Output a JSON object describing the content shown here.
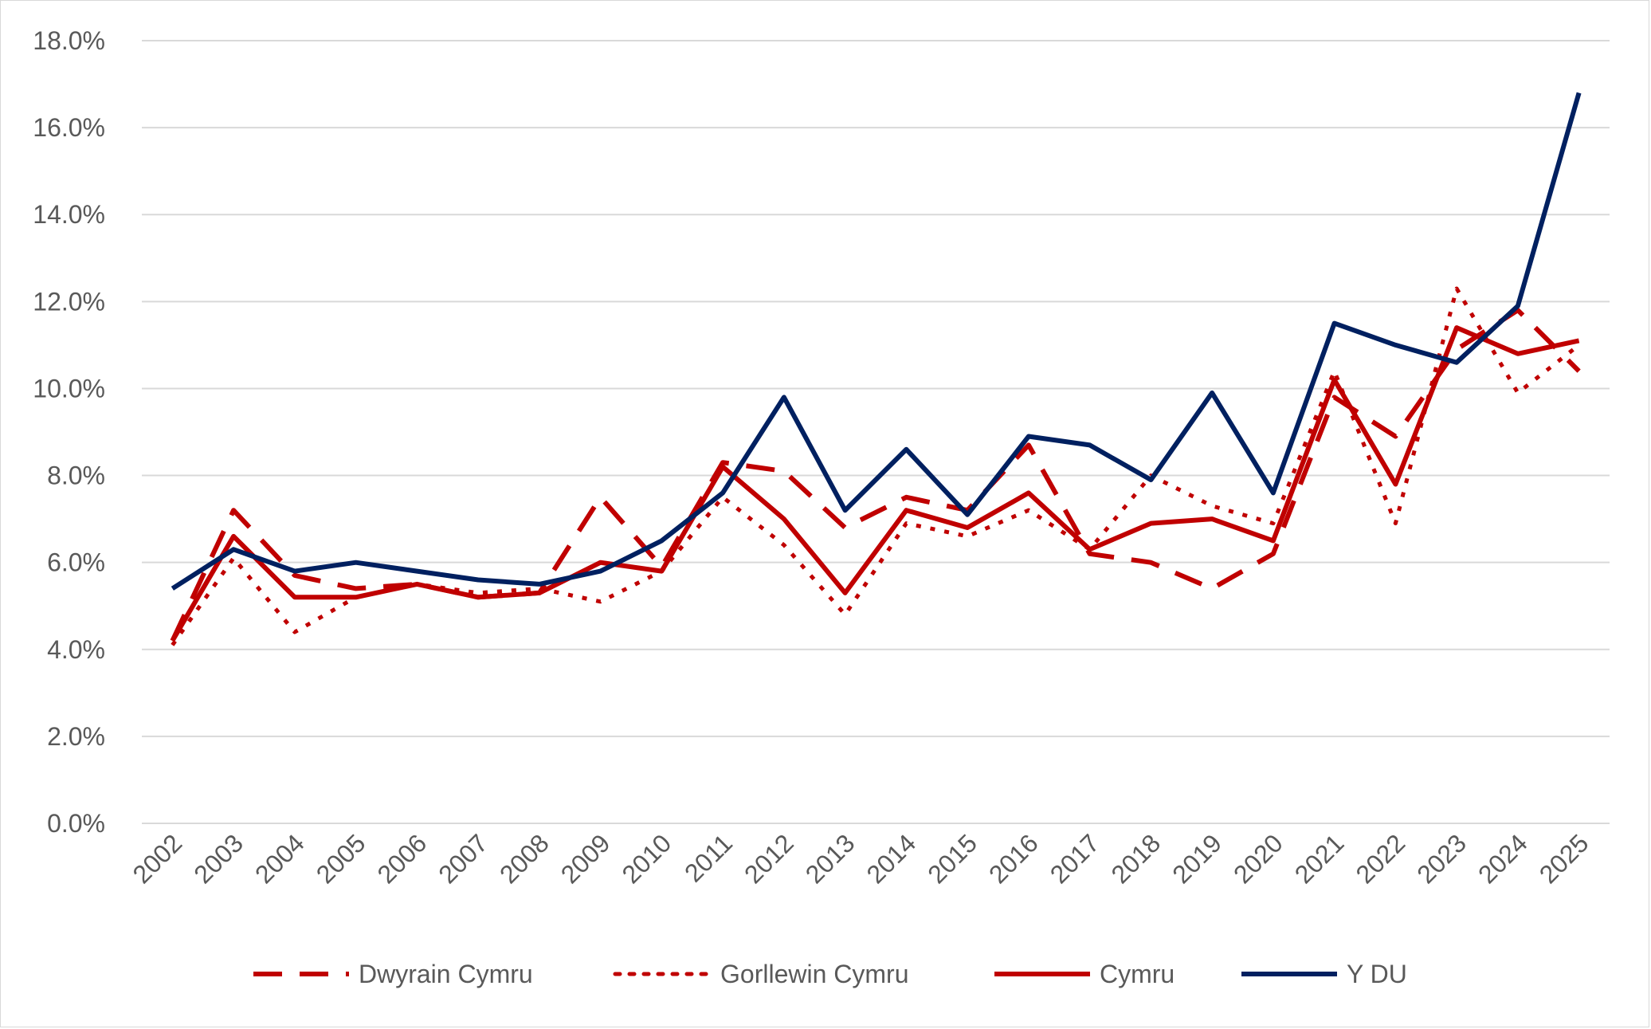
{
  "chart_data": {
    "type": "line",
    "title": "",
    "xlabel": "",
    "ylabel": "",
    "ylim": [
      0,
      18
    ],
    "y_ticks": [
      "0.0%",
      "2.0%",
      "4.0%",
      "6.0%",
      "8.0%",
      "10.0%",
      "12.0%",
      "14.0%",
      "16.0%",
      "18.0%"
    ],
    "grid": true,
    "legend_position": "bottom",
    "categories": [
      "2002",
      "2003",
      "2004",
      "2005",
      "2006",
      "2007",
      "2008",
      "2009",
      "2010",
      "2011",
      "2012",
      "2013",
      "2014",
      "2015",
      "2016",
      "2017",
      "2018",
      "2019",
      "2020",
      "2021",
      "2022",
      "2023",
      "2024",
      "2025"
    ],
    "series": [
      {
        "name": "Dwyrain Cymru",
        "style": "dashed",
        "color": "#c00000",
        "values": [
          4.2,
          7.2,
          5.7,
          5.4,
          5.5,
          5.2,
          5.3,
          7.5,
          5.9,
          8.3,
          8.1,
          6.8,
          7.5,
          7.2,
          8.7,
          6.2,
          6.0,
          5.4,
          6.2,
          9.8,
          8.9,
          10.9,
          11.8,
          10.4
        ]
      },
      {
        "name": "Gorllewin Cymru",
        "style": "dotted",
        "color": "#c00000",
        "values": [
          4.1,
          6.1,
          4.4,
          5.2,
          5.5,
          5.3,
          5.4,
          5.1,
          5.8,
          7.5,
          6.4,
          4.8,
          6.9,
          6.6,
          7.2,
          6.3,
          8.0,
          7.3,
          6.9,
          10.4,
          6.9,
          12.3,
          9.9,
          11.0
        ]
      },
      {
        "name": "Cymru",
        "style": "solid",
        "color": "#c00000",
        "values": [
          4.2,
          6.6,
          5.2,
          5.2,
          5.5,
          5.2,
          5.3,
          6.0,
          5.8,
          8.2,
          7.0,
          5.3,
          7.2,
          6.8,
          7.6,
          6.3,
          6.9,
          7.0,
          6.5,
          10.2,
          7.8,
          11.4,
          10.8,
          11.1
        ]
      },
      {
        "name": "Y DU",
        "style": "solid",
        "color": "#002060",
        "values": [
          5.4,
          6.3,
          5.8,
          6.0,
          5.8,
          5.6,
          5.5,
          5.8,
          6.5,
          7.6,
          9.8,
          7.2,
          8.6,
          7.1,
          8.9,
          8.7,
          7.9,
          9.9,
          7.6,
          11.5,
          11.0,
          10.6,
          11.9,
          16.8
        ]
      }
    ]
  }
}
